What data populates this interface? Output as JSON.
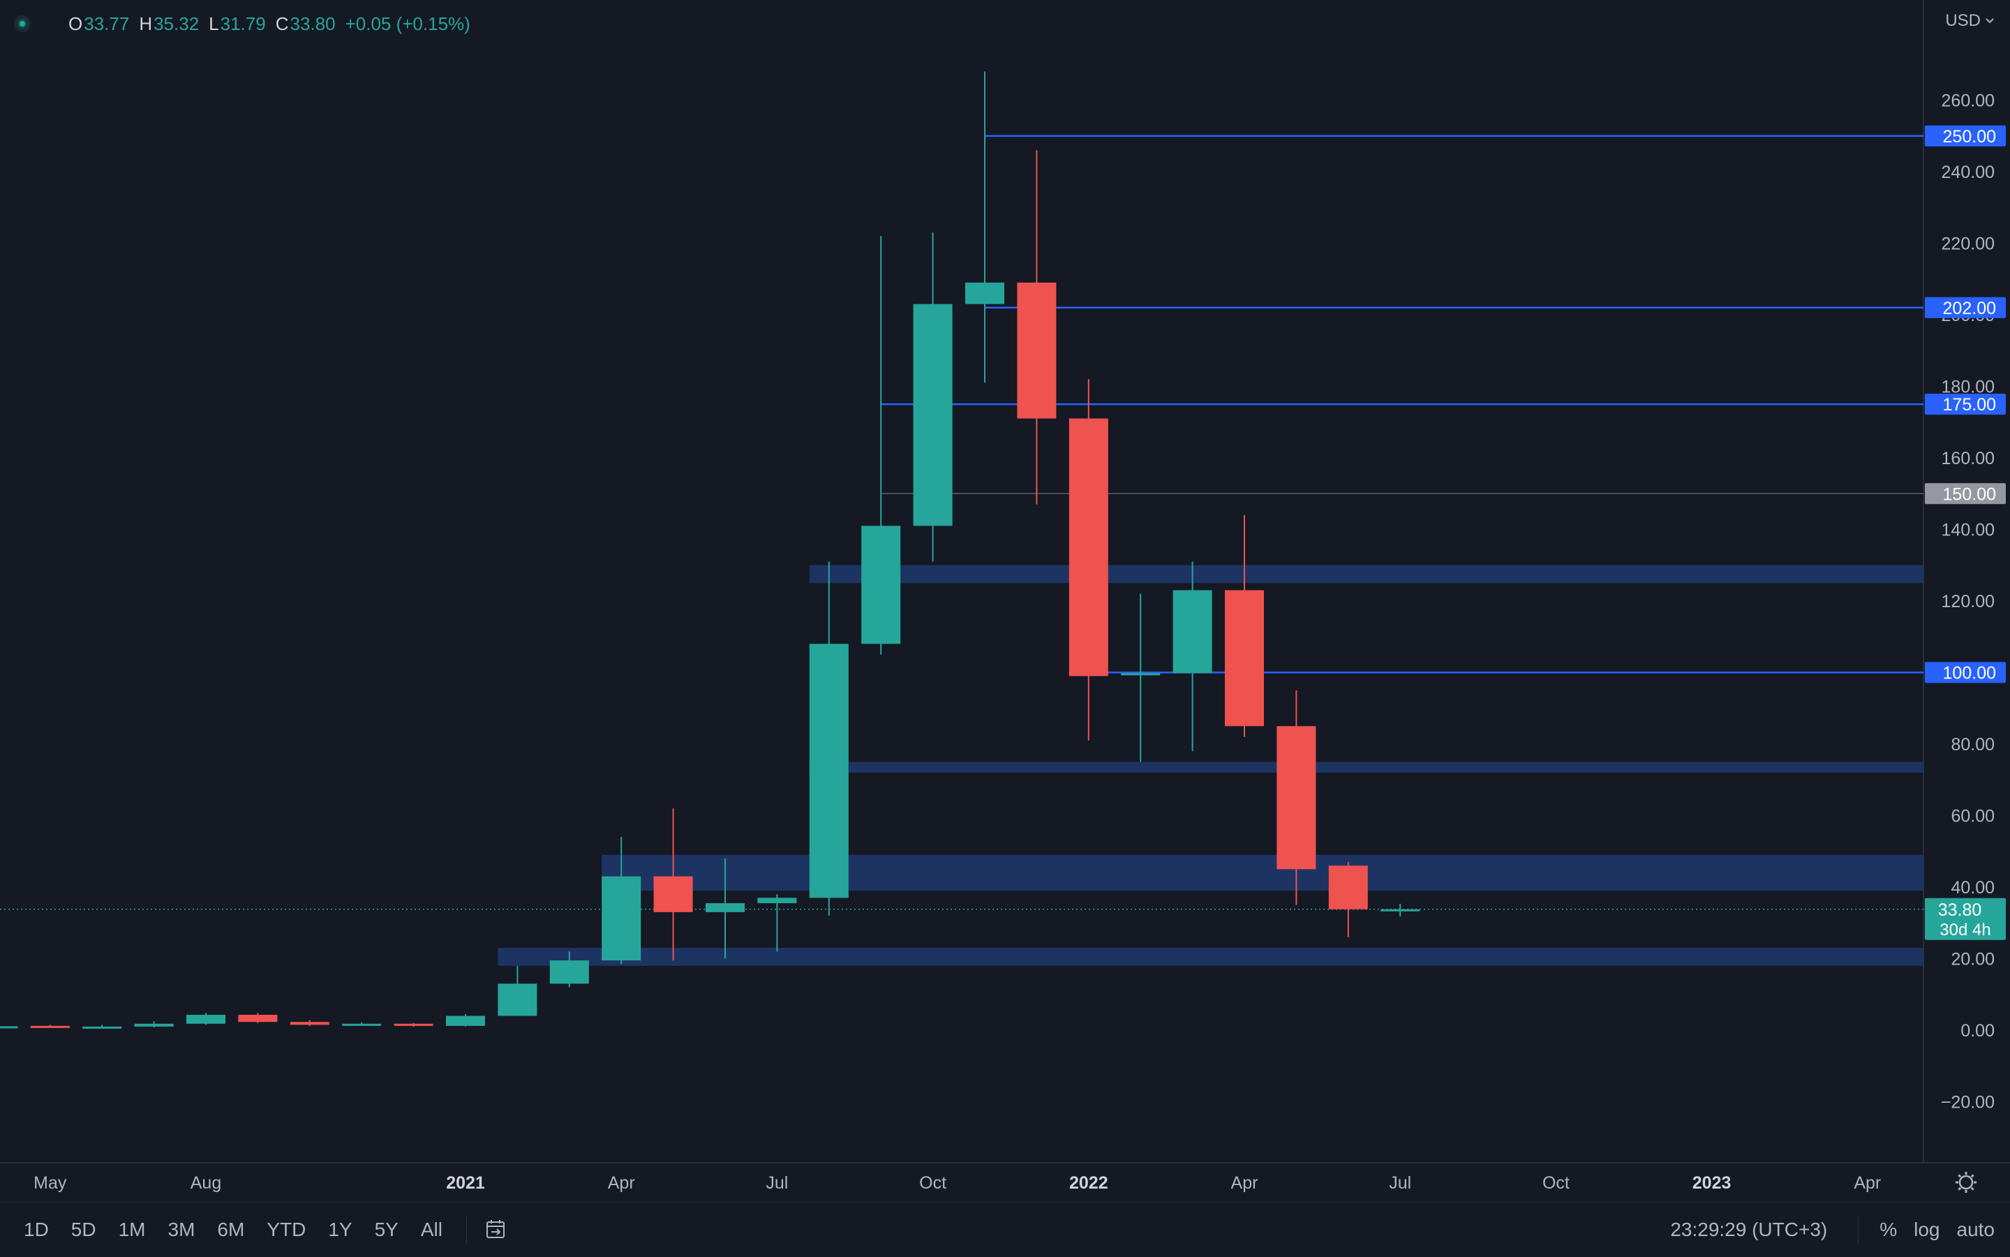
{
  "header": {
    "ohlc": [
      {
        "key": "O",
        "value": "33.77"
      },
      {
        "key": "H",
        "value": "35.32"
      },
      {
        "key": "L",
        "value": "31.79"
      },
      {
        "key": "C",
        "value": "33.80"
      }
    ],
    "change": "+0.05 (+0.15%)",
    "currency": "USD"
  },
  "bottom_bar": {
    "ranges": [
      "1D",
      "5D",
      "1M",
      "3M",
      "6M",
      "YTD",
      "1Y",
      "5Y",
      "All"
    ],
    "clock": "23:29:29 (UTC+3)",
    "percent": "%",
    "log": "log",
    "auto": "auto"
  },
  "colors": {
    "background": "#151924",
    "up": "#26a69a",
    "down": "#ef5350",
    "level_line": "#2962ff",
    "zone": "#1e3a6e",
    "grid_text": "#b2b5be",
    "tag_blue": "#2962ff",
    "tag_gray": "#9598a1",
    "price_tag": "#26a69a"
  },
  "chart_data": {
    "type": "candlestick",
    "interval": "monthly",
    "ylim": [
      -30,
      270
    ],
    "y_ticks": [
      -20,
      0,
      20,
      40,
      60,
      80,
      100,
      120,
      140,
      160,
      180,
      200,
      220,
      240,
      260
    ],
    "y_tick_labels": [
      "−20.00",
      "0.00",
      "20.00",
      "40.00",
      "60.00",
      "80.00",
      "100.00",
      "120.00",
      "140.00",
      "160.00",
      "180.00",
      "200.00",
      "220.00",
      "240.00",
      "260.00"
    ],
    "x_labels": [
      {
        "text": "May",
        "bold": false,
        "date": "2020-05"
      },
      {
        "text": "Aug",
        "bold": false,
        "date": "2020-08"
      },
      {
        "text": "2021",
        "bold": true,
        "date": "2021-01"
      },
      {
        "text": "Apr",
        "bold": false,
        "date": "2021-04"
      },
      {
        "text": "Jul",
        "bold": false,
        "date": "2021-07"
      },
      {
        "text": "Oct",
        "bold": false,
        "date": "2021-10"
      },
      {
        "text": "2022",
        "bold": true,
        "date": "2022-01"
      },
      {
        "text": "Apr",
        "bold": false,
        "date": "2022-04"
      },
      {
        "text": "Jul",
        "bold": false,
        "date": "2022-07"
      },
      {
        "text": "Oct",
        "bold": false,
        "date": "2022-10"
      },
      {
        "text": "2023",
        "bold": true,
        "date": "2023-01"
      },
      {
        "text": "Apr",
        "bold": false,
        "date": "2023-04"
      }
    ],
    "candles": [
      {
        "date": "2020-04",
        "o": 0.8,
        "h": 1.3,
        "l": 0.5,
        "c": 1.1
      },
      {
        "date": "2020-05",
        "o": 1.2,
        "h": 1.5,
        "l": 0.9,
        "c": 0.7
      },
      {
        "date": "2020-06",
        "o": 0.7,
        "h": 1.5,
        "l": 0.6,
        "c": 1.0
      },
      {
        "date": "2020-07",
        "o": 1.0,
        "h": 2.5,
        "l": 0.8,
        "c": 1.8
      },
      {
        "date": "2020-08",
        "o": 1.8,
        "h": 4.8,
        "l": 1.5,
        "c": 4.3
      },
      {
        "date": "2020-09",
        "o": 4.3,
        "h": 4.8,
        "l": 2.0,
        "c": 2.3
      },
      {
        "date": "2020-10",
        "o": 2.3,
        "h": 2.8,
        "l": 1.2,
        "c": 1.5
      },
      {
        "date": "2020-11",
        "o": 1.5,
        "h": 2.2,
        "l": 1.2,
        "c": 1.8
      },
      {
        "date": "2020-12",
        "o": 1.8,
        "h": 2.0,
        "l": 1.0,
        "c": 1.2
      },
      {
        "date": "2021-01",
        "o": 1.2,
        "h": 4.5,
        "l": 1.0,
        "c": 4.0
      },
      {
        "date": "2021-02",
        "o": 4.0,
        "h": 18.0,
        "l": 4.0,
        "c": 13.0
      },
      {
        "date": "2021-03",
        "o": 13.0,
        "h": 22.0,
        "l": 12.0,
        "c": 19.5
      },
      {
        "date": "2021-04",
        "o": 19.5,
        "h": 54.0,
        "l": 18.5,
        "c": 43.0
      },
      {
        "date": "2021-05",
        "o": 43.0,
        "h": 62.0,
        "l": 19.5,
        "c": 33.0
      },
      {
        "date": "2021-06",
        "o": 33.0,
        "h": 48.0,
        "l": 20.0,
        "c": 35.5
      },
      {
        "date": "2021-07",
        "o": 35.5,
        "h": 38.0,
        "l": 22.0,
        "c": 37.0
      },
      {
        "date": "2021-08",
        "o": 37.0,
        "h": 131.0,
        "l": 32.0,
        "c": 108.0
      },
      {
        "date": "2021-09",
        "o": 108.0,
        "h": 222.0,
        "l": 105.0,
        "c": 141.0
      },
      {
        "date": "2021-10",
        "o": 141.0,
        "h": 223.0,
        "l": 131.0,
        "c": 203.0
      },
      {
        "date": "2021-11",
        "o": 203.0,
        "h": 268.0,
        "l": 181.0,
        "c": 209.0
      },
      {
        "date": "2021-12",
        "o": 209.0,
        "h": 246.0,
        "l": 147.0,
        "c": 171.0
      },
      {
        "date": "2022-01",
        "o": 171.0,
        "h": 182.0,
        "l": 81.0,
        "c": 99.0
      },
      {
        "date": "2022-02",
        "o": 99.5,
        "h": 122.0,
        "l": 75.0,
        "c": 99.8
      },
      {
        "date": "2022-03",
        "o": 99.8,
        "h": 131.0,
        "l": 78.0,
        "c": 123.0
      },
      {
        "date": "2022-04",
        "o": 123.0,
        "h": 144.0,
        "l": 82.0,
        "c": 85.0
      },
      {
        "date": "2022-05",
        "o": 85.0,
        "h": 95.0,
        "l": 35.0,
        "c": 45.0
      },
      {
        "date": "2022-06",
        "o": 46.0,
        "h": 47.0,
        "l": 26.0,
        "c": 33.8
      },
      {
        "date": "2022-07",
        "o": 33.77,
        "h": 35.32,
        "l": 31.79,
        "c": 33.8
      }
    ],
    "levels": [
      {
        "price": 250,
        "label": "250.00",
        "start": "2021-11",
        "tag": "blue"
      },
      {
        "price": 202,
        "label": "202.00",
        "start": "2021-11",
        "tag": "blue"
      },
      {
        "price": 175,
        "label": "175.00",
        "start": "2021-09",
        "tag": "blue"
      },
      {
        "price": 150,
        "label": "150.00",
        "start": "2021-09",
        "tag": "gray"
      },
      {
        "price": 100,
        "label": "100.00",
        "start": "2022-01",
        "tag": "blue"
      }
    ],
    "zones": [
      {
        "from": 125,
        "to": 130,
        "start": "2021-08"
      },
      {
        "from": 72,
        "to": 75,
        "start": "2021-08"
      },
      {
        "from": 39,
        "to": 49,
        "start": "2021-04"
      },
      {
        "from": 18,
        "to": 23,
        "start": "2021-02"
      }
    ],
    "last_price": {
      "value": 33.8,
      "label": "33.80",
      "countdown": "30d 4h"
    }
  }
}
